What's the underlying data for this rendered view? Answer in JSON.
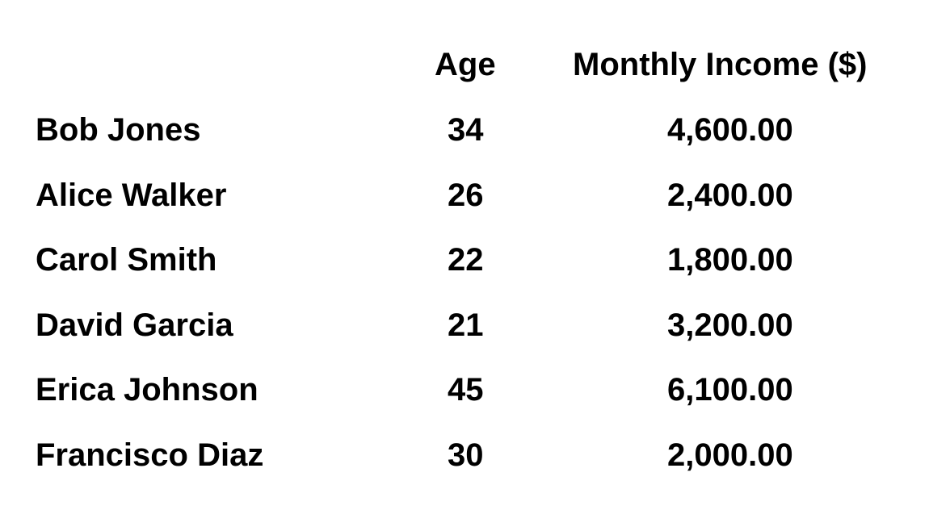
{
  "table": {
    "headers": {
      "name": "",
      "age": "Age",
      "income": "Monthly Income ($)"
    },
    "rows": [
      {
        "name": "Bob Jones",
        "age": "34",
        "income": "4,600.00"
      },
      {
        "name": "Alice Walker",
        "age": "26",
        "income": "2,400.00"
      },
      {
        "name": "Carol Smith",
        "age": "22",
        "income": "1,800.00"
      },
      {
        "name": "David Garcia",
        "age": "21",
        "income": "3,200.00"
      },
      {
        "name": "Erica Johnson",
        "age": "45",
        "income": "6,100.00"
      },
      {
        "name": "Francisco Diaz",
        "age": "30",
        "income": "2,000.00"
      }
    ]
  }
}
